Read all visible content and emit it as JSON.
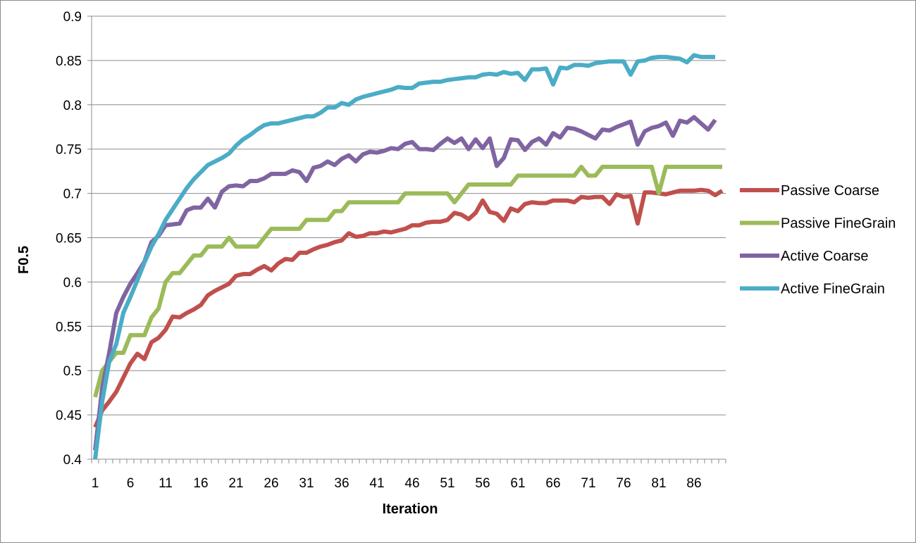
{
  "chart_data": {
    "type": "line",
    "title": "",
    "xlabel": "Iteration",
    "ylabel": "F0.5",
    "ylim": [
      0.4,
      0.9
    ],
    "yticks": [
      "0.4",
      "0.45",
      "0.5",
      "0.55",
      "0.6",
      "0.65",
      "0.7",
      "0.75",
      "0.8",
      "0.85",
      "0.9"
    ],
    "xlim": [
      1,
      90
    ],
    "xticks": [
      "1",
      "6",
      "11",
      "16",
      "21",
      "26",
      "31",
      "36",
      "41",
      "46",
      "51",
      "56",
      "61",
      "66",
      "71",
      "76",
      "81",
      "86"
    ],
    "grid": "horizontal",
    "legend_position": "right",
    "series": [
      {
        "name": "Passive Coarse",
        "color": "#c0504d",
        "values": [
          0.436,
          0.455,
          0.465,
          0.476,
          0.492,
          0.508,
          0.519,
          0.513,
          0.532,
          0.537,
          0.546,
          0.561,
          0.56,
          0.565,
          0.569,
          0.574,
          0.585,
          0.59,
          0.594,
          0.598,
          0.607,
          0.609,
          0.609,
          0.614,
          0.618,
          0.613,
          0.621,
          0.626,
          0.625,
          0.633,
          0.633,
          0.637,
          0.64,
          0.642,
          0.645,
          0.647,
          0.655,
          0.651,
          0.652,
          0.655,
          0.655,
          0.657,
          0.656,
          0.658,
          0.66,
          0.664,
          0.664,
          0.667,
          0.668,
          0.668,
          0.67,
          0.678,
          0.676,
          0.671,
          0.678,
          0.692,
          0.679,
          0.677,
          0.669,
          0.683,
          0.68,
          0.688,
          0.69,
          0.689,
          0.689,
          0.692,
          0.692,
          0.692,
          0.69,
          0.696,
          0.695,
          0.696,
          0.696,
          0.688,
          0.699,
          0.696,
          0.697,
          0.666,
          0.701,
          0.701,
          0.7,
          0.699,
          0.701,
          0.703,
          0.703,
          0.703,
          0.704,
          0.703,
          0.698,
          0.703
        ]
      },
      {
        "name": "Passive FineGrain",
        "color": "#9bbb59",
        "values": [
          0.47,
          0.5,
          0.51,
          0.52,
          0.52,
          0.54,
          0.54,
          0.54,
          0.56,
          0.57,
          0.6,
          0.61,
          0.61,
          0.62,
          0.63,
          0.63,
          0.64,
          0.64,
          0.64,
          0.65,
          0.64,
          0.64,
          0.64,
          0.64,
          0.65,
          0.66,
          0.66,
          0.66,
          0.66,
          0.66,
          0.67,
          0.67,
          0.67,
          0.67,
          0.68,
          0.68,
          0.69,
          0.69,
          0.69,
          0.69,
          0.69,
          0.69,
          0.69,
          0.69,
          0.7,
          0.7,
          0.7,
          0.7,
          0.7,
          0.7,
          0.7,
          0.69,
          0.7,
          0.71,
          0.71,
          0.71,
          0.71,
          0.71,
          0.71,
          0.71,
          0.72,
          0.72,
          0.72,
          0.72,
          0.72,
          0.72,
          0.72,
          0.72,
          0.72,
          0.73,
          0.72,
          0.72,
          0.73,
          0.73,
          0.73,
          0.73,
          0.73,
          0.73,
          0.73,
          0.73,
          0.7,
          0.73,
          0.73,
          0.73,
          0.73,
          0.73,
          0.73,
          0.73,
          0.73,
          0.73
        ]
      },
      {
        "name": "Active Coarse",
        "color": "#8064a2",
        "values": [
          0.41,
          0.48,
          0.52,
          0.565,
          0.583,
          0.598,
          0.61,
          0.623,
          0.645,
          0.652,
          0.664,
          0.665,
          0.666,
          0.681,
          0.684,
          0.684,
          0.694,
          0.684,
          0.702,
          0.708,
          0.709,
          0.708,
          0.714,
          0.714,
          0.717,
          0.722,
          0.722,
          0.722,
          0.726,
          0.724,
          0.714,
          0.729,
          0.731,
          0.736,
          0.732,
          0.739,
          0.743,
          0.736,
          0.744,
          0.747,
          0.746,
          0.748,
          0.751,
          0.75,
          0.756,
          0.758,
          0.75,
          0.75,
          0.749,
          0.756,
          0.762,
          0.757,
          0.762,
          0.75,
          0.761,
          0.751,
          0.762,
          0.731,
          0.74,
          0.761,
          0.76,
          0.749,
          0.758,
          0.762,
          0.755,
          0.768,
          0.763,
          0.774,
          0.773,
          0.77,
          0.766,
          0.762,
          0.772,
          0.771,
          0.775,
          0.778,
          0.781,
          0.755,
          0.77,
          0.774,
          0.776,
          0.78,
          0.765,
          0.782,
          0.78,
          0.786,
          0.779,
          0.772,
          0.783
        ]
      },
      {
        "name": "Active FineGrain",
        "color": "#4bacc6",
        "values": [
          0.4,
          0.465,
          0.51,
          0.53,
          0.565,
          0.583,
          0.602,
          0.622,
          0.64,
          0.654,
          0.67,
          0.682,
          0.694,
          0.706,
          0.716,
          0.724,
          0.732,
          0.736,
          0.74,
          0.745,
          0.754,
          0.761,
          0.766,
          0.772,
          0.777,
          0.779,
          0.779,
          0.781,
          0.783,
          0.785,
          0.787,
          0.787,
          0.791,
          0.797,
          0.797,
          0.802,
          0.8,
          0.806,
          0.809,
          0.811,
          0.813,
          0.815,
          0.817,
          0.82,
          0.819,
          0.819,
          0.824,
          0.825,
          0.826,
          0.826,
          0.828,
          0.829,
          0.83,
          0.831,
          0.831,
          0.834,
          0.835,
          0.834,
          0.837,
          0.835,
          0.836,
          0.828,
          0.84,
          0.84,
          0.841,
          0.823,
          0.842,
          0.841,
          0.845,
          0.845,
          0.844,
          0.847,
          0.848,
          0.849,
          0.849,
          0.849,
          0.834,
          0.849,
          0.85,
          0.853,
          0.854,
          0.854,
          0.853,
          0.852,
          0.848,
          0.856,
          0.854,
          0.854,
          0.854
        ]
      }
    ]
  }
}
